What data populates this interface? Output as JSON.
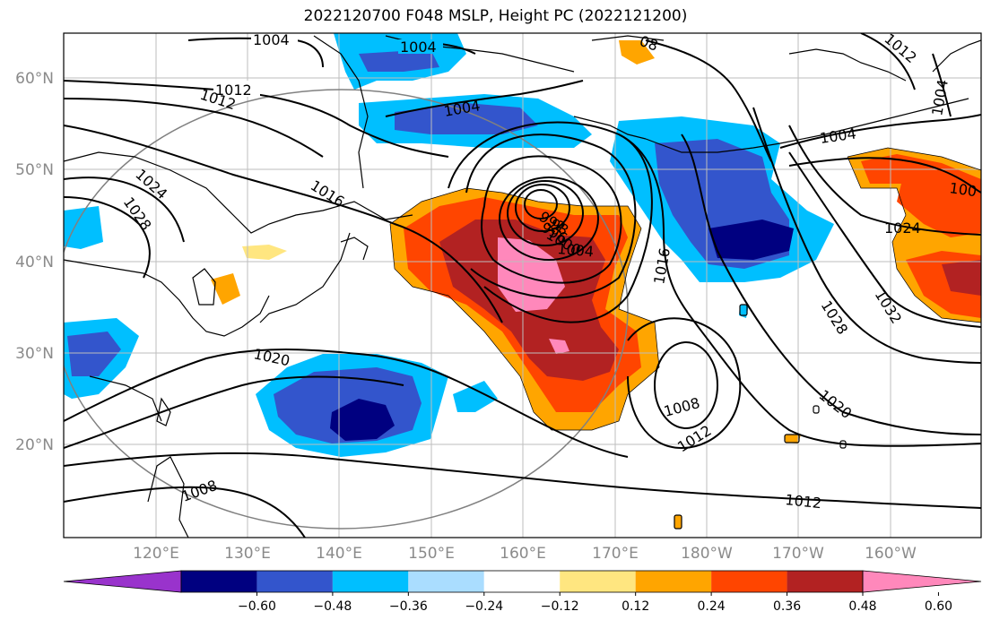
{
  "title": "2022120700 F048 MSLP, Height PC (2022121200)",
  "map": {
    "lat_labels": [
      "60°N",
      "50°N",
      "40°N",
      "30°N",
      "20°N"
    ],
    "lon_labels": [
      "120°E",
      "130°E",
      "140°E",
      "150°E",
      "160°E",
      "170°E",
      "180°W",
      "170°W",
      "160°W"
    ]
  },
  "colorbar": {
    "ticks": [
      "−0.60",
      "−0.48",
      "−0.36",
      "−0.24",
      "−0.12",
      "0.12",
      "0.24",
      "0.36",
      "0.48",
      "0.60"
    ],
    "colors": [
      "#9933cc",
      "#000080",
      "#3355cc",
      "#00bfff",
      "#aaddff",
      "#ffffff",
      "#ffe680",
      "#ffa500",
      "#ff4500",
      "#b22222",
      "#ff88bb"
    ]
  },
  "contour_labels": [
    {
      "id": "c1004a",
      "text": "1004"
    },
    {
      "id": "c1004b",
      "text": "1004"
    },
    {
      "id": "c1004c",
      "text": "1004"
    },
    {
      "id": "c1004d",
      "text": "1004"
    },
    {
      "id": "c1004e",
      "text": "1004"
    },
    {
      "id": "c1004f",
      "text": "1004"
    },
    {
      "id": "c1012a",
      "text": "1012"
    },
    {
      "id": "c1012b",
      "text": "1012"
    },
    {
      "id": "c1012c",
      "text": "1012"
    },
    {
      "id": "c1012d",
      "text": "1012"
    },
    {
      "id": "c1012e",
      "text": "1012"
    },
    {
      "id": "c1016a",
      "text": "1016"
    },
    {
      "id": "c1016b",
      "text": "1016"
    },
    {
      "id": "c1024a",
      "text": "1024"
    },
    {
      "id": "c1024b",
      "text": "1024"
    },
    {
      "id": "c1028a",
      "text": "1028"
    },
    {
      "id": "c1028b",
      "text": "1028"
    },
    {
      "id": "c1032",
      "text": "1032"
    },
    {
      "id": "c1020a",
      "text": "1020"
    },
    {
      "id": "c1020b",
      "text": "1020"
    },
    {
      "id": "c1008a",
      "text": "1008"
    },
    {
      "id": "c1008b",
      "text": "1008"
    },
    {
      "id": "c1000",
      "text": "1000"
    },
    {
      "id": "c996",
      "text": "996"
    },
    {
      "id": "c992",
      "text": "992"
    },
    {
      "id": "c988",
      "text": "98"
    },
    {
      "id": "c100x",
      "text": "100"
    },
    {
      "id": "c08",
      "text": "08"
    }
  ]
}
